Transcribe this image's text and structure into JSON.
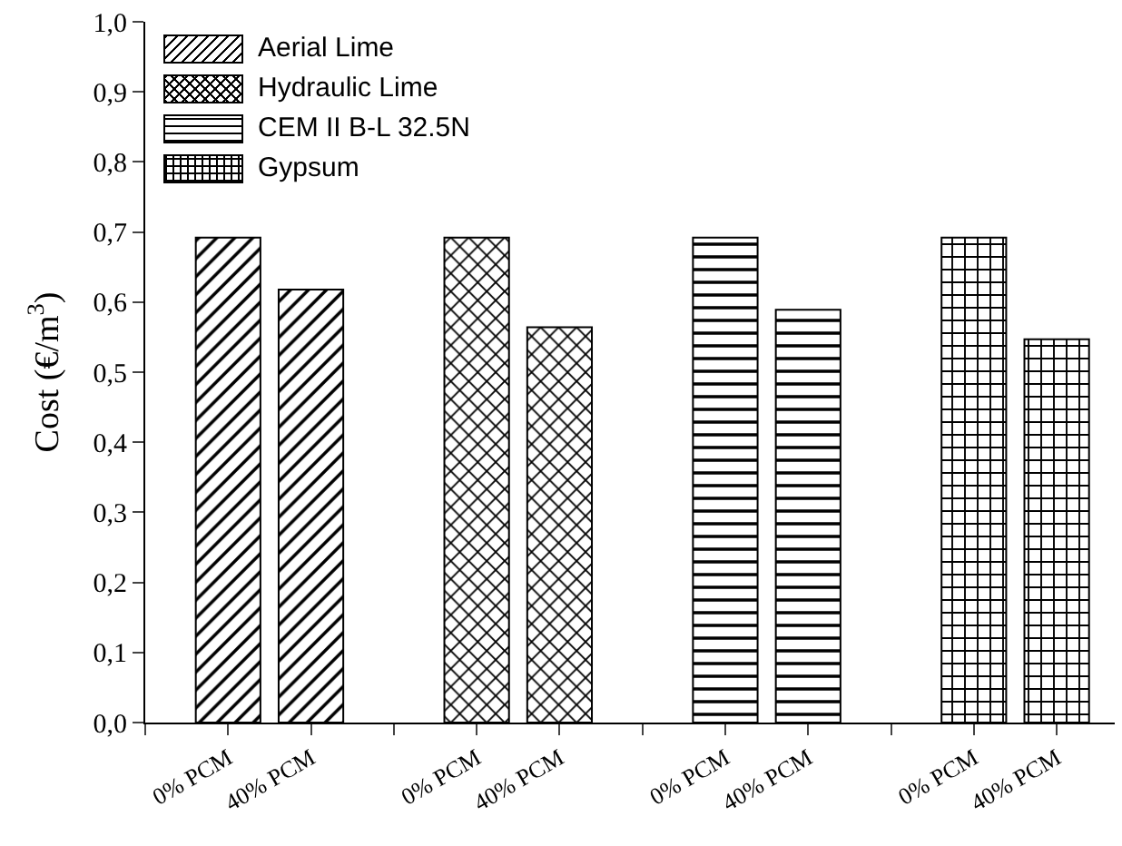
{
  "chart_data": {
    "type": "bar",
    "ylabel": "Cost (€/m$^{3}$)",
    "categories": [
      "0% PCM",
      "40% PCM",
      null,
      "0% PCM",
      "40% PCM",
      null,
      "0% PCM",
      "40% PCM",
      null,
      "0% PCM",
      "40% PCM"
    ],
    "series": [
      {
        "name": "Aerial Lime",
        "color": "#000000",
        "values": [
          0.692,
          0.618,
          null,
          null,
          null,
          null,
          null,
          null,
          null,
          null,
          null
        ]
      },
      {
        "name": "Hydraulic Lime",
        "color": "#000000",
        "values": [
          null,
          null,
          null,
          0.692,
          0.564,
          null,
          null,
          null,
          null,
          null,
          null
        ]
      },
      {
        "name": "CEM II B-L 32.5N",
        "color": "#000000",
        "values": [
          null,
          null,
          null,
          null,
          null,
          null,
          0.692,
          0.589,
          null,
          null,
          null
        ]
      },
      {
        "name": "Gypsum",
        "color": "#000000",
        "values": [
          null,
          null,
          null,
          null,
          null,
          null,
          null,
          null,
          null,
          0.692,
          0.547
        ]
      }
    ],
    "ylim": [
      0,
      1
    ],
    "yticks": [
      {
        "value": 0,
        "label": "0,0"
      },
      {
        "value": 0.1,
        "label": "0,1"
      },
      {
        "value": 0.2,
        "label": "0,2"
      },
      {
        "value": 0.3,
        "label": "0,3"
      },
      {
        "value": 0.4,
        "label": "0,4"
      },
      {
        "value": 0.5,
        "label": "0,5"
      },
      {
        "value": 0.6,
        "label": "0,6"
      },
      {
        "value": 0.7,
        "label": "0,7"
      },
      {
        "value": 0.8,
        "label": "0,8"
      },
      {
        "value": 0.9,
        "label": "0,9"
      },
      {
        "value": 1,
        "label": "1,0"
      }
    ],
    "grid": false,
    "legend": "top left"
  }
}
